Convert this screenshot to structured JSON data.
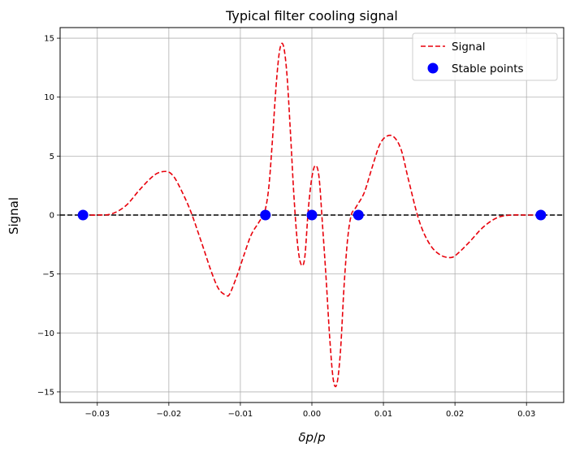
{
  "chart_data": {
    "type": "line",
    "title": "Typical filter cooling signal",
    "xlabel_italic": "δp",
    "xlabel_sep": "/",
    "xlabel_italic2": "p",
    "ylabel": "Signal",
    "xlim": [
      -0.0352,
      0.0352
    ],
    "ylim": [
      -15.9,
      15.9
    ],
    "xticks": [
      -0.03,
      -0.02,
      -0.01,
      0.0,
      0.01,
      0.02,
      0.03
    ],
    "xtick_labels": [
      "−0.03",
      "−0.02",
      "−0.01",
      "0.00",
      "0.01",
      "0.02",
      "0.03"
    ],
    "yticks": [
      -15,
      -10,
      -5,
      0,
      5,
      10,
      15
    ],
    "ytick_labels": [
      "−15",
      "−10",
      "−5",
      "0",
      "5",
      "10",
      "15"
    ],
    "grid": true,
    "legend_position": "top-right",
    "zero_line": {
      "y": 0,
      "color": "#000000",
      "style": "dashed"
    },
    "series": [
      {
        "name": "Signal",
        "type": "line",
        "style": "dashed",
        "color": "#e8000b",
        "x": [
          -0.032,
          -0.03,
          -0.028,
          -0.026,
          -0.024,
          -0.022,
          -0.0205,
          -0.0195,
          -0.0185,
          -0.017,
          -0.0155,
          -0.014,
          -0.013,
          -0.012,
          -0.0115,
          -0.0105,
          -0.0095,
          -0.0085,
          -0.0075,
          -0.007,
          -0.0065,
          -0.006,
          -0.0055,
          -0.005,
          -0.0045,
          -0.004,
          -0.0035,
          -0.003,
          -0.0025,
          -0.002,
          -0.0015,
          -0.001,
          -0.0005,
          0.0,
          0.0005,
          0.001,
          0.0015,
          0.002,
          0.0025,
          0.003,
          0.0035,
          0.004,
          0.0045,
          0.005,
          0.0055,
          0.006,
          0.0065,
          0.007,
          0.0075,
          0.0085,
          0.0095,
          0.0105,
          0.0115,
          0.0125,
          0.0135,
          0.015,
          0.0165,
          0.018,
          0.0195,
          0.0205,
          0.022,
          0.024,
          0.026,
          0.028,
          0.03,
          0.032
        ],
        "y": [
          0,
          0.0,
          0.1,
          0.8,
          2.2,
          3.4,
          3.7,
          3.4,
          2.4,
          0.4,
          -2.2,
          -4.9,
          -6.3,
          -6.8,
          -6.7,
          -5.2,
          -3.4,
          -1.7,
          -0.7,
          -0.2,
          0.5,
          2.5,
          6.5,
          11.0,
          14.0,
          14.4,
          12.0,
          7.0,
          1.5,
          -2.5,
          -4.2,
          -3.6,
          0.5,
          3.2,
          4.2,
          3.2,
          -1.0,
          -5.5,
          -10.5,
          -14.0,
          -14.3,
          -11.5,
          -6.0,
          -2.0,
          0.0,
          0.5,
          1.0,
          1.5,
          2.2,
          4.2,
          6.0,
          6.7,
          6.6,
          5.5,
          3.0,
          -0.5,
          -2.5,
          -3.4,
          -3.6,
          -3.2,
          -2.3,
          -1.0,
          -0.2,
          0.0,
          0.0,
          0
        ]
      },
      {
        "name": "Stable points",
        "type": "scatter",
        "color": "#0000ff",
        "x": [
          -0.032,
          -0.0065,
          0.0,
          0.0065,
          0.032
        ],
        "y": [
          0,
          0,
          0,
          0,
          0
        ]
      }
    ]
  }
}
